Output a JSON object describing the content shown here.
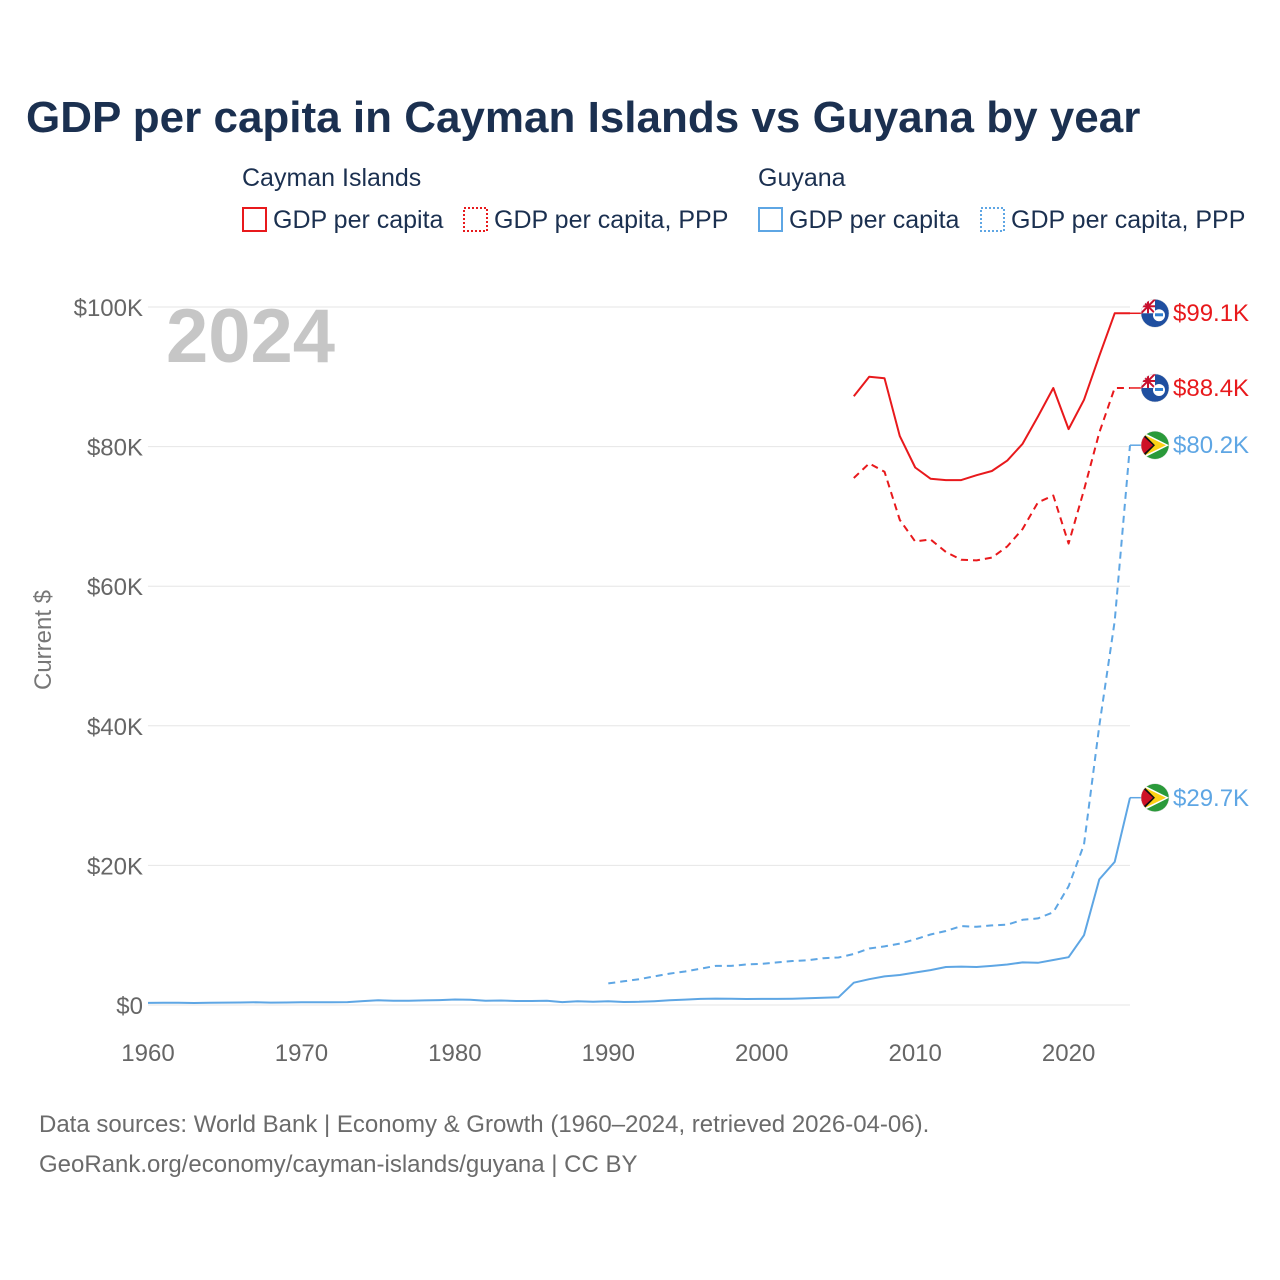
{
  "chart_data": {
    "type": "line",
    "title": "GDP per capita in Cayman Islands vs Guyana by year",
    "year_label": "2024",
    "ylabel": "Current $",
    "xlim": [
      1960,
      2024
    ],
    "ylim": [
      0,
      100000
    ],
    "y_ticks": [
      {
        "value": 0,
        "label": "$0"
      },
      {
        "value": 20000,
        "label": "$20K"
      },
      {
        "value": 40000,
        "label": "$40K"
      },
      {
        "value": 60000,
        "label": "$60K"
      },
      {
        "value": 80000,
        "label": "$80K"
      },
      {
        "value": 100000,
        "label": "$100K"
      }
    ],
    "x_ticks": [
      {
        "value": 1960,
        "label": "1960"
      },
      {
        "value": 1970,
        "label": "1970"
      },
      {
        "value": 1980,
        "label": "1980"
      },
      {
        "value": 1990,
        "label": "1990"
      },
      {
        "value": 2000,
        "label": "2000"
      },
      {
        "value": 2010,
        "label": "2010"
      },
      {
        "value": 2020,
        "label": "2020"
      }
    ],
    "legend_groups": [
      {
        "country": "Cayman Islands",
        "items": [
          "GDP per capita",
          "GDP per capita, PPP"
        ]
      },
      {
        "country": "Guyana",
        "items": [
          "GDP per capita",
          "GDP per capita, PPP"
        ]
      }
    ],
    "series": [
      {
        "name": "Cayman Islands GDP per capita",
        "country": "Cayman Islands",
        "style": "solid",
        "color": "#e8191c",
        "end_label": "$99.1K",
        "x": [
          2006,
          2007,
          2008,
          2009,
          2010,
          2011,
          2012,
          2013,
          2014,
          2015,
          2016,
          2017,
          2018,
          2019,
          2020,
          2021,
          2022,
          2023,
          2024
        ],
        "y": [
          87200,
          90000,
          89800,
          81500,
          77000,
          75400,
          75200,
          75200,
          75900,
          76500,
          78000,
          80400,
          84300,
          88400,
          82500,
          86700,
          93000,
          99100,
          99100
        ]
      },
      {
        "name": "Cayman Islands GDP per capita, PPP",
        "country": "Cayman Islands",
        "style": "dashed",
        "color": "#e8191c",
        "end_label": "$88.4K",
        "x": [
          2006,
          2007,
          2008,
          2009,
          2010,
          2011,
          2012,
          2013,
          2014,
          2015,
          2016,
          2017,
          2018,
          2019,
          2020,
          2021,
          2022,
          2023,
          2024
        ],
        "y": [
          75500,
          77600,
          76400,
          69500,
          66400,
          66700,
          64900,
          63800,
          63700,
          64100,
          65700,
          68200,
          72000,
          73000,
          66100,
          73800,
          82000,
          88400,
          88400
        ]
      },
      {
        "name": "Guyana GDP per capita",
        "country": "Guyana",
        "style": "solid",
        "color": "#5ea6e4",
        "end_label": "$29.7K",
        "x": [
          1960,
          1961,
          1962,
          1963,
          1964,
          1965,
          1966,
          1967,
          1968,
          1969,
          1970,
          1971,
          1972,
          1973,
          1974,
          1975,
          1976,
          1977,
          1978,
          1979,
          1980,
          1981,
          1982,
          1983,
          1984,
          1985,
          1986,
          1987,
          1988,
          1989,
          1990,
          1991,
          1992,
          1993,
          1994,
          1995,
          1996,
          1997,
          1998,
          1999,
          2000,
          2001,
          2002,
          2003,
          2004,
          2005,
          2006,
          2007,
          2008,
          2009,
          2010,
          2011,
          2012,
          2013,
          2014,
          2015,
          2016,
          2017,
          2018,
          2019,
          2020,
          2021,
          2022,
          2023,
          2024
        ],
        "y": [
          300,
          310,
          330,
          290,
          320,
          340,
          360,
          390,
          340,
          360,
          390,
          400,
          390,
          420,
          560,
          680,
          620,
          610,
          660,
          700,
          790,
          760,
          620,
          640,
          580,
          570,
          610,
          420,
          540,
          470,
          530,
          430,
          460,
          550,
          680,
          780,
          880,
          920,
          900,
          860,
          880,
          870,
          900,
          960,
          1030,
          1100,
          3200,
          3700,
          4100,
          4300,
          4650,
          5000,
          5450,
          5500,
          5450,
          5600,
          5800,
          6100,
          6050,
          6450,
          6850,
          10000,
          18000,
          20500,
          29700
        ]
      },
      {
        "name": "Guyana GDP per capita, PPP",
        "country": "Guyana",
        "style": "dashed",
        "color": "#5ea6e4",
        "end_label": "$80.2K",
        "x": [
          1990,
          1991,
          1992,
          1993,
          1994,
          1995,
          1996,
          1997,
          1998,
          1999,
          2000,
          2001,
          2002,
          2003,
          2004,
          2005,
          2006,
          2007,
          2008,
          2009,
          2010,
          2011,
          2012,
          2013,
          2014,
          2015,
          2016,
          2017,
          2018,
          2019,
          2020,
          2021,
          2022,
          2023,
          2024
        ],
        "y": [
          3100,
          3400,
          3700,
          4100,
          4500,
          4800,
          5200,
          5600,
          5600,
          5800,
          5900,
          6100,
          6300,
          6400,
          6700,
          6800,
          7300,
          8100,
          8400,
          8800,
          9400,
          10100,
          10600,
          11300,
          11200,
          11400,
          11500,
          12200,
          12400,
          13300,
          17000,
          23000,
          40000,
          55000,
          80200
        ]
      }
    ]
  },
  "flags": {
    "cayman": "cayman-islands-flag-icon",
    "guyana": "guyana-flag-icon"
  },
  "footer": {
    "line1": "Data sources: World Bank | Economy & Growth (1960–2024, retrieved 2026-04-06).",
    "line2": "GeoRank.org/economy/cayman-islands/guyana | CC BY"
  }
}
